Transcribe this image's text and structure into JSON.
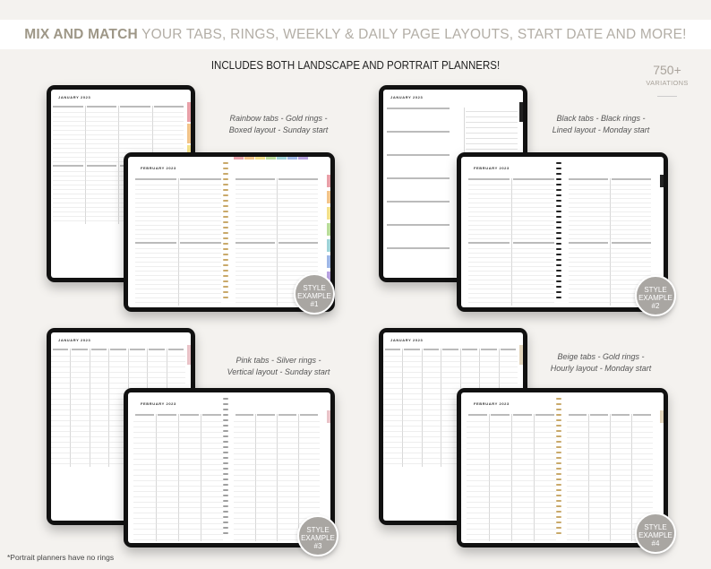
{
  "header": {
    "bold": "MIX AND MATCH",
    "rest": " YOUR TABS, RINGS, WEEKLY & DAILY PAGE LAYOUTS, START DATE AND MORE!"
  },
  "subheading": "INCLUDES BOTH LANDSCAPE AND PORTRAIT PLANNERS!",
  "variations": {
    "count": "750+",
    "label": "VARIATIONS"
  },
  "portrait_title": "JANUARY 2023",
  "landscape_title": "FEBRUARY 2023",
  "examples": [
    {
      "caption1": "Rainbow tabs - Gold rings -",
      "caption2": "Boxed layout - Sunday start",
      "badge1": "STYLE",
      "badge2": "EXAMPLE",
      "badge3": "#1",
      "tab_colors": [
        "#e8a0a8",
        "#f2c48a",
        "#f3e08a",
        "#b9dc9a",
        "#9fd3d8",
        "#9fb7e6",
        "#b7a2e0"
      ],
      "ring_color": "#c9a96a",
      "layout": "boxed"
    },
    {
      "caption1": "Black tabs - Black rings -",
      "caption2": "Lined layout - Monday start",
      "badge1": "STYLE",
      "badge2": "EXAMPLE",
      "badge3": "#2",
      "tab_colors": [
        "#222222"
      ],
      "ring_color": "#222222",
      "layout": "lined"
    },
    {
      "caption1": "Pink tabs - Silver rings -",
      "caption2": "Vertical layout - Sunday start",
      "badge1": "STYLE",
      "badge2": "EXAMPLE",
      "badge3": "#3",
      "tab_colors": [
        "#e9c3c8"
      ],
      "ring_color": "#a0a0a0",
      "layout": "vertical"
    },
    {
      "caption1": "Beige tabs - Gold rings -",
      "caption2": "Hourly layout - Monday start",
      "badge1": "STYLE",
      "badge2": "EXAMPLE",
      "badge3": "#4",
      "tab_colors": [
        "#e3d6bd"
      ],
      "ring_color": "#c9a96a",
      "layout": "hourly"
    }
  ],
  "footnote": "*Portrait planners have no rings"
}
